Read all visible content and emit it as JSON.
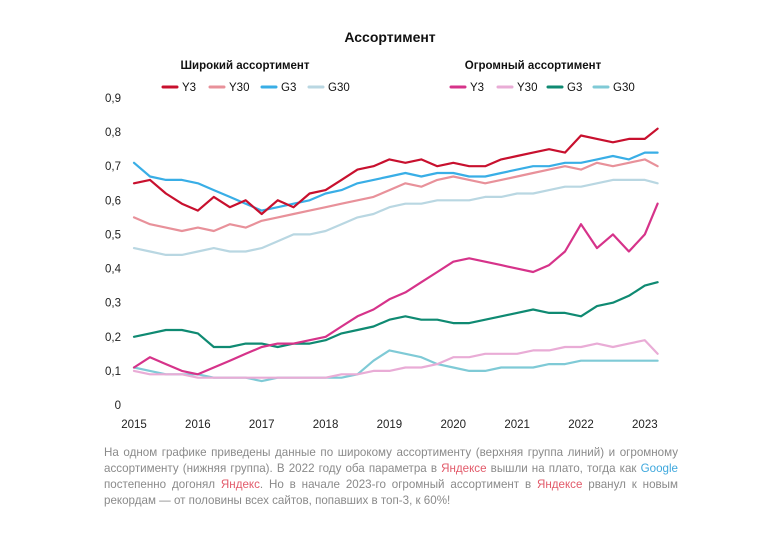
{
  "chart_data": {
    "type": "line",
    "title": "Ассортимент",
    "xlabel": "",
    "ylabel": "",
    "xlim": [
      2015,
      2023.3
    ],
    "ylim": [
      0,
      0.9
    ],
    "x_ticks": [
      "2015",
      "2016",
      "2017",
      "2018",
      "2019",
      "2020",
      "2021",
      "2022",
      "2023"
    ],
    "y_ticks": [
      "0",
      "0,1",
      "0,2",
      "0,3",
      "0,4",
      "0,5",
      "0,6",
      "0,7",
      "0,8",
      "0,9"
    ],
    "groups": [
      {
        "label": "Широкий ассортимент",
        "legend": [
          "Y3",
          "Y30",
          "G3",
          "G30"
        ]
      },
      {
        "label": "Огромный ассортимент",
        "legend": [
          "Y3",
          "Y30",
          "G3",
          "G30"
        ]
      }
    ],
    "series": [
      {
        "name": "Y3",
        "group": "Широкий ассортимент",
        "color": "#c8102e",
        "x": [
          2015.0,
          2015.25,
          2015.5,
          2015.75,
          2016.0,
          2016.25,
          2016.5,
          2016.75,
          2017.0,
          2017.25,
          2017.5,
          2017.75,
          2018.0,
          2018.25,
          2018.5,
          2018.75,
          2019.0,
          2019.25,
          2019.5,
          2019.75,
          2020.0,
          2020.25,
          2020.5,
          2020.75,
          2021.0,
          2021.25,
          2021.5,
          2021.75,
          2022.0,
          2022.25,
          2022.5,
          2022.75,
          2023.0,
          2023.2
        ],
        "values": [
          0.65,
          0.66,
          0.62,
          0.59,
          0.57,
          0.61,
          0.58,
          0.6,
          0.56,
          0.6,
          0.58,
          0.62,
          0.63,
          0.66,
          0.69,
          0.7,
          0.72,
          0.71,
          0.72,
          0.7,
          0.71,
          0.7,
          0.7,
          0.72,
          0.73,
          0.74,
          0.75,
          0.74,
          0.79,
          0.78,
          0.77,
          0.78,
          0.78,
          0.81
        ]
      },
      {
        "name": "Y30",
        "group": "Широкий ассортимент",
        "color": "#e8919a",
        "x": [
          2015.0,
          2015.25,
          2015.5,
          2015.75,
          2016.0,
          2016.25,
          2016.5,
          2016.75,
          2017.0,
          2017.25,
          2017.5,
          2017.75,
          2018.0,
          2018.25,
          2018.5,
          2018.75,
          2019.0,
          2019.25,
          2019.5,
          2019.75,
          2020.0,
          2020.25,
          2020.5,
          2020.75,
          2021.0,
          2021.25,
          2021.5,
          2021.75,
          2022.0,
          2022.25,
          2022.5,
          2022.75,
          2023.0,
          2023.2
        ],
        "values": [
          0.55,
          0.53,
          0.52,
          0.51,
          0.52,
          0.51,
          0.53,
          0.52,
          0.54,
          0.55,
          0.56,
          0.57,
          0.58,
          0.59,
          0.6,
          0.61,
          0.63,
          0.65,
          0.64,
          0.66,
          0.67,
          0.66,
          0.65,
          0.66,
          0.67,
          0.68,
          0.69,
          0.7,
          0.69,
          0.71,
          0.7,
          0.71,
          0.72,
          0.7
        ]
      },
      {
        "name": "G3",
        "group": "Широкий ассортимент",
        "color": "#39aee6",
        "x": [
          2015.0,
          2015.25,
          2015.5,
          2015.75,
          2016.0,
          2016.25,
          2016.5,
          2016.75,
          2017.0,
          2017.25,
          2017.5,
          2017.75,
          2018.0,
          2018.25,
          2018.5,
          2018.75,
          2019.0,
          2019.25,
          2019.5,
          2019.75,
          2020.0,
          2020.25,
          2020.5,
          2020.75,
          2021.0,
          2021.25,
          2021.5,
          2021.75,
          2022.0,
          2022.25,
          2022.5,
          2022.75,
          2023.0,
          2023.2
        ],
        "values": [
          0.71,
          0.67,
          0.66,
          0.66,
          0.65,
          0.63,
          0.61,
          0.59,
          0.57,
          0.58,
          0.59,
          0.6,
          0.62,
          0.63,
          0.65,
          0.66,
          0.67,
          0.68,
          0.67,
          0.68,
          0.68,
          0.67,
          0.67,
          0.68,
          0.69,
          0.7,
          0.7,
          0.71,
          0.71,
          0.72,
          0.73,
          0.72,
          0.74,
          0.74
        ]
      },
      {
        "name": "G30",
        "group": "Широкий ассортимент",
        "color": "#b9d7e2",
        "x": [
          2015.0,
          2015.25,
          2015.5,
          2015.75,
          2016.0,
          2016.25,
          2016.5,
          2016.75,
          2017.0,
          2017.25,
          2017.5,
          2017.75,
          2018.0,
          2018.25,
          2018.5,
          2018.75,
          2019.0,
          2019.25,
          2019.5,
          2019.75,
          2020.0,
          2020.25,
          2020.5,
          2020.75,
          2021.0,
          2021.25,
          2021.5,
          2021.75,
          2022.0,
          2022.25,
          2022.5,
          2022.75,
          2023.0,
          2023.2
        ],
        "values": [
          0.46,
          0.45,
          0.44,
          0.44,
          0.45,
          0.46,
          0.45,
          0.45,
          0.46,
          0.48,
          0.5,
          0.5,
          0.51,
          0.53,
          0.55,
          0.56,
          0.58,
          0.59,
          0.59,
          0.6,
          0.6,
          0.6,
          0.61,
          0.61,
          0.62,
          0.62,
          0.63,
          0.64,
          0.64,
          0.65,
          0.66,
          0.66,
          0.66,
          0.65
        ]
      },
      {
        "name": "Y3",
        "group": "Огромный ассортимент",
        "color": "#d6338a",
        "x": [
          2015.0,
          2015.25,
          2015.5,
          2015.75,
          2016.0,
          2016.25,
          2016.5,
          2016.75,
          2017.0,
          2017.25,
          2017.5,
          2017.75,
          2018.0,
          2018.25,
          2018.5,
          2018.75,
          2019.0,
          2019.25,
          2019.5,
          2019.75,
          2020.0,
          2020.25,
          2020.5,
          2020.75,
          2021.0,
          2021.25,
          2021.5,
          2021.75,
          2022.0,
          2022.25,
          2022.5,
          2022.75,
          2023.0,
          2023.2
        ],
        "values": [
          0.11,
          0.14,
          0.12,
          0.1,
          0.09,
          0.11,
          0.13,
          0.15,
          0.17,
          0.18,
          0.18,
          0.19,
          0.2,
          0.23,
          0.26,
          0.28,
          0.31,
          0.33,
          0.36,
          0.39,
          0.42,
          0.43,
          0.42,
          0.41,
          0.4,
          0.39,
          0.41,
          0.45,
          0.53,
          0.46,
          0.5,
          0.45,
          0.5,
          0.59
        ]
      },
      {
        "name": "Y30",
        "group": "Огромный ассортимент",
        "color": "#e9acd6",
        "x": [
          2015.0,
          2015.25,
          2015.5,
          2015.75,
          2016.0,
          2016.25,
          2016.5,
          2016.75,
          2017.0,
          2017.25,
          2017.5,
          2017.75,
          2018.0,
          2018.25,
          2018.5,
          2018.75,
          2019.0,
          2019.25,
          2019.5,
          2019.75,
          2020.0,
          2020.25,
          2020.5,
          2020.75,
          2021.0,
          2021.25,
          2021.5,
          2021.75,
          2022.0,
          2022.25,
          2022.5,
          2022.75,
          2023.0,
          2023.2
        ],
        "values": [
          0.1,
          0.09,
          0.09,
          0.09,
          0.08,
          0.08,
          0.08,
          0.08,
          0.08,
          0.08,
          0.08,
          0.08,
          0.08,
          0.09,
          0.09,
          0.1,
          0.1,
          0.11,
          0.11,
          0.12,
          0.14,
          0.14,
          0.15,
          0.15,
          0.15,
          0.16,
          0.16,
          0.17,
          0.17,
          0.18,
          0.17,
          0.18,
          0.19,
          0.15
        ]
      },
      {
        "name": "G3",
        "group": "Огромный ассортимент",
        "color": "#0f8a72",
        "x": [
          2015.0,
          2015.25,
          2015.5,
          2015.75,
          2016.0,
          2016.25,
          2016.5,
          2016.75,
          2017.0,
          2017.25,
          2017.5,
          2017.75,
          2018.0,
          2018.25,
          2018.5,
          2018.75,
          2019.0,
          2019.25,
          2019.5,
          2019.75,
          2020.0,
          2020.25,
          2020.5,
          2020.75,
          2021.0,
          2021.25,
          2021.5,
          2021.75,
          2022.0,
          2022.25,
          2022.5,
          2022.75,
          2023.0,
          2023.2
        ],
        "values": [
          0.2,
          0.21,
          0.22,
          0.22,
          0.21,
          0.17,
          0.17,
          0.18,
          0.18,
          0.17,
          0.18,
          0.18,
          0.19,
          0.21,
          0.22,
          0.23,
          0.25,
          0.26,
          0.25,
          0.25,
          0.24,
          0.24,
          0.25,
          0.26,
          0.27,
          0.28,
          0.27,
          0.27,
          0.26,
          0.29,
          0.3,
          0.32,
          0.35,
          0.36
        ]
      },
      {
        "name": "G30",
        "group": "Огромный ассортимент",
        "color": "#7fcad6",
        "x": [
          2015.0,
          2015.25,
          2015.5,
          2015.75,
          2016.0,
          2016.25,
          2016.5,
          2016.75,
          2017.0,
          2017.25,
          2017.5,
          2017.75,
          2018.0,
          2018.25,
          2018.5,
          2018.75,
          2019.0,
          2019.25,
          2019.5,
          2019.75,
          2020.0,
          2020.25,
          2020.5,
          2020.75,
          2021.0,
          2021.25,
          2021.5,
          2021.75,
          2022.0,
          2022.25,
          2022.5,
          2022.75,
          2023.0,
          2023.2
        ],
        "values": [
          0.11,
          0.1,
          0.09,
          0.09,
          0.09,
          0.08,
          0.08,
          0.08,
          0.07,
          0.08,
          0.08,
          0.08,
          0.08,
          0.08,
          0.09,
          0.13,
          0.16,
          0.15,
          0.14,
          0.12,
          0.11,
          0.1,
          0.1,
          0.11,
          0.11,
          0.11,
          0.12,
          0.12,
          0.13,
          0.13,
          0.13,
          0.13,
          0.13,
          0.13
        ]
      }
    ]
  },
  "caption": {
    "p1": "На одном графике приведены данные по широкому ассортименту (верхняя группа линий) и огромному ассортименту (нижняя группа). В 2022 году оба параметра в ",
    "yandex1": "Яндексе",
    "p2": " вышли на плато, тогда как ",
    "google": "Google",
    "p3": " постепенно догонял ",
    "yandex2": "Яндекс",
    "p4": ". Но в начале 2023-го огромный ассортимент в ",
    "yandex3": "Яндексе",
    "p5": " рванул к новым рекордам — от половины всех сайтов, попавших в топ-3, к 60%!"
  }
}
